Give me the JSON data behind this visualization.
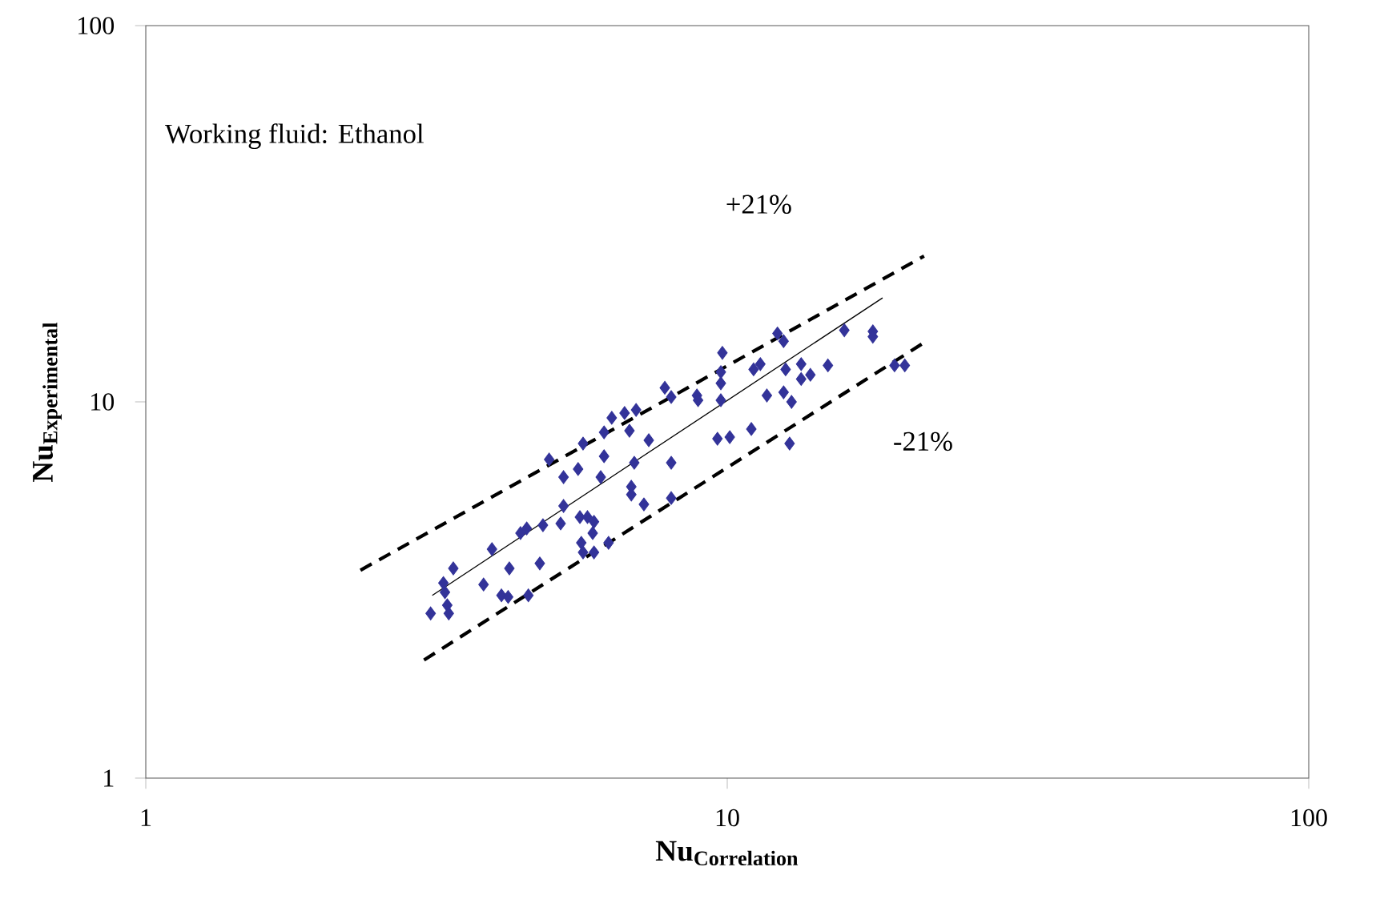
{
  "chart_data": {
    "type": "scatter",
    "xlabel": "\\mathbf{Nu}_{\\mathbf{Correlation}}",
    "ylabel": "\\mathbf{Nu}_{\\mathbf{Experimental}}",
    "xlim": [
      1,
      100
    ],
    "ylim": [
      1,
      100
    ],
    "xticks": [
      1,
      10,
      100
    ],
    "yticks": [
      1,
      10,
      100
    ],
    "log": "xy",
    "grid": false,
    "annotations": [
      "Working fluid: Ethanol",
      "+21%",
      "-21%"
    ],
    "series": [
      {
        "type": "scatter",
        "color": "#333399",
        "marker": "diamond",
        "x": [
          3.09,
          3.3,
          3.32,
          3.27,
          3.25,
          3.38,
          3.81,
          3.94,
          4.09,
          4.2,
          4.22,
          4.55,
          4.41,
          4.52,
          4.76,
          4.82,
          5.17,
          5.23,
          4.94,
          5.23,
          5.54,
          5.65,
          5.58,
          5.61,
          5.65,
          5.75,
          5.9,
          5.87,
          5.9,
          6.25,
          6.06,
          6.14,
          6.14,
          6.33,
          6.66,
          6.97,
          6.79,
          6.92,
          6.84,
          6.84,
          7.19,
          7.33,
          7.81,
          8.01,
          8.01,
          8.01,
          8.87,
          8.91,
          9.75,
          9.81,
          9.75,
          9.75,
          9.62,
          10.1,
          11.0,
          11.1,
          11.4,
          11.7,
          12.2,
          12.5,
          12.6,
          12.5,
          12.9,
          12.8,
          13.4,
          13.4,
          13.9,
          14.9,
          15.9,
          17.8,
          17.8,
          19.4,
          20.2
        ],
        "values": [
          2.74,
          2.88,
          2.74,
          3.12,
          3.3,
          3.61,
          3.27,
          4.06,
          3.06,
          3.03,
          3.61,
          3.06,
          4.48,
          4.61,
          3.72,
          4.7,
          4.75,
          5.29,
          7.03,
          6.31,
          6.63,
          7.75,
          4.94,
          4.22,
          3.98,
          4.94,
          4.8,
          4.48,
          3.98,
          4.22,
          6.31,
          7.17,
          8.3,
          9.07,
          9.34,
          9.52,
          8.38,
          6.89,
          5.95,
          5.67,
          5.34,
          7.91,
          10.9,
          10.3,
          6.89,
          5.55,
          10.4,
          10.1,
          12.0,
          13.5,
          11.2,
          10.1,
          7.98,
          8.06,
          8.47,
          12.2,
          12.6,
          10.4,
          15.2,
          14.5,
          12.2,
          10.6,
          10.0,
          7.75,
          12.6,
          11.5,
          11.8,
          12.5,
          15.5,
          15.4,
          14.9,
          12.5,
          12.5
        ]
      },
      {
        "type": "line",
        "color": "#000000",
        "line_style": "solid",
        "marker": "none",
        "x": [
          3.11,
          18.5
        ],
        "values": [
          3.06,
          18.9
        ]
      },
      {
        "type": "line",
        "color": "#000000",
        "line_style": "dashed",
        "marker": "none",
        "x": [
          2.34,
          21.8
        ],
        "values": [
          3.57,
          24.4
        ]
      },
      {
        "type": "line",
        "color": "#000000",
        "line_style": "dashed",
        "marker": "none",
        "x": [
          3.01,
          22.0
        ],
        "values": [
          2.06,
          14.5
        ]
      }
    ]
  }
}
